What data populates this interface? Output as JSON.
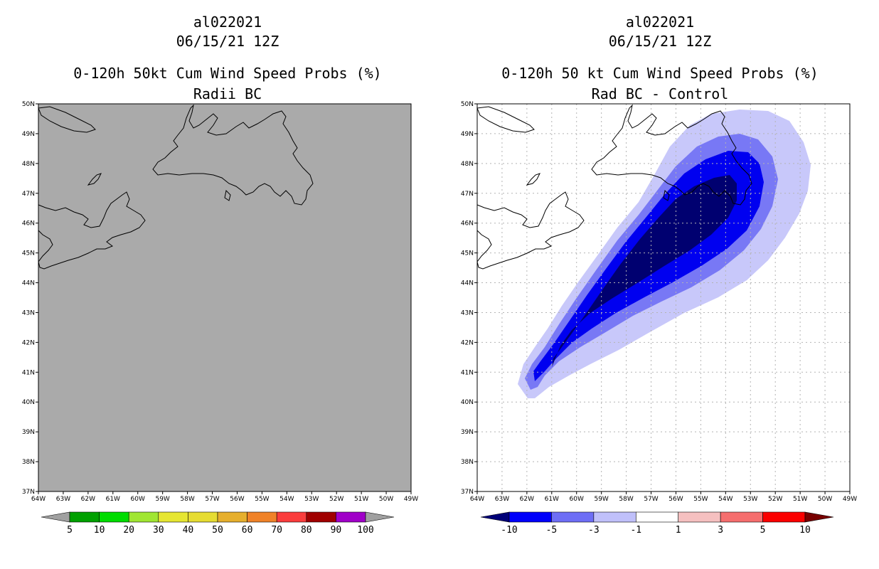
{
  "left_panel": {
    "storm_id": "al022021",
    "datetime": "06/15/21 12Z",
    "product": "0-120h 50kt Cum Wind Speed Probs (%)",
    "subtitle": "Radii BC",
    "colorbar": {
      "labels": [
        "5",
        "10",
        "20",
        "30",
        "40",
        "50",
        "60",
        "70",
        "80",
        "90",
        "100"
      ],
      "colors": [
        "#00a000",
        "#00dc00",
        "#a0e632",
        "#e6e632",
        "#e6dc32",
        "#e6af2d",
        "#f08228",
        "#fa3c3c",
        "#a00000",
        "#a000c8"
      ],
      "under_color": "#a0a0a0",
      "over_color": "#a0a0a0"
    },
    "field_color": "#aaaaaa"
  },
  "right_panel": {
    "storm_id": "al022021",
    "datetime": "06/15/21 12Z",
    "product": "0-120h 50 kt Cum Wind Speed Probs (%)",
    "subtitle": "Rad BC - Control",
    "colorbar": {
      "labels": [
        "-10",
        "-5",
        "-3",
        "-1",
        "1",
        "3",
        "5",
        "10"
      ],
      "colors": [
        "#0000fa",
        "#6e6ef5",
        "#c0c0fa",
        "#ffffff",
        "#f5c0c0",
        "#f56e6e",
        "#fa0000"
      ],
      "under_color": "#000078",
      "over_color": "#780000"
    },
    "contour_colors": [
      "#c8c8fa",
      "#7878f5",
      "#0000f0",
      "#000070"
    ]
  },
  "map": {
    "lat_labels": [
      "50N",
      "49N",
      "48N",
      "47N",
      "46N",
      "45N",
      "44N",
      "43N",
      "42N",
      "41N",
      "40N",
      "39N",
      "38N",
      "37N"
    ],
    "lon_labels": [
      "64W",
      "63W",
      "62W",
      "61W",
      "60W",
      "59W",
      "58W",
      "57W",
      "56W",
      "55W",
      "54W",
      "53W",
      "52W",
      "51W",
      "50W",
      "49W"
    ],
    "lat_range": [
      37,
      50
    ],
    "lon_range": [
      -64,
      -49
    ]
  }
}
